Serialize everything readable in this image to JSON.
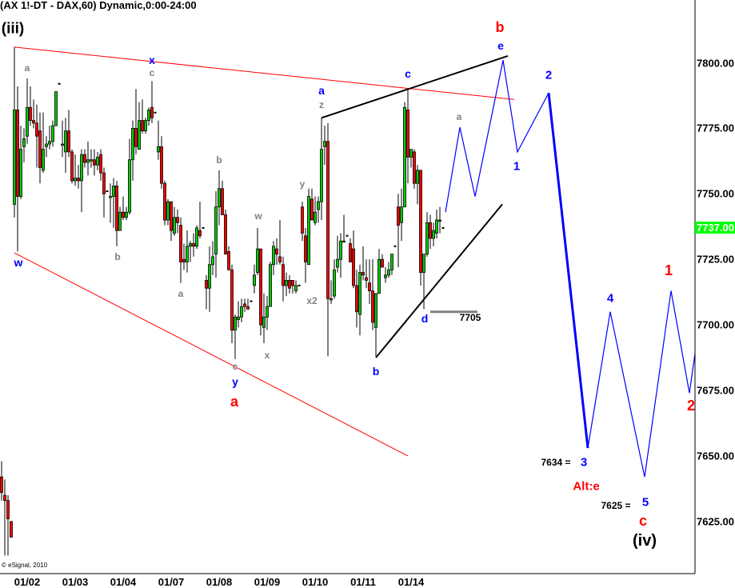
{
  "header": {
    "title": "(AX 1!-DT - DAX,60) Dynamic,0:00-24:00"
  },
  "footer": {
    "copyright": "© eSignal, 2010"
  },
  "colors": {
    "up": "#00cc00",
    "down": "#ff0000",
    "projection": "#0000ff",
    "channel_red": "#ff0000",
    "channel_black": "#000000",
    "last_price_bg": "#00ff00",
    "label_grey": "#808080",
    "label_blue": "#0000ff",
    "label_red": "#ff0000"
  },
  "chart_data": {
    "type": "candlestick",
    "ylim": [
      7612,
      7822
    ],
    "y_ticks": [
      "7800.00",
      "7775.00",
      "7750.00",
      "7725.00",
      "7700.00",
      "7675.00",
      "7650.00",
      "7625.00"
    ],
    "y_tick_values": [
      7800,
      7775,
      7750,
      7725,
      7700,
      7675,
      7650,
      7625
    ],
    "last_price": "7737.00",
    "x_ticks": [
      "01/02",
      "01/03",
      "01/04",
      "01/07",
      "01/08",
      "01/09",
      "01/10",
      "01/11",
      "01/14"
    ],
    "x_tick_bars": [
      4,
      19,
      34,
      49,
      64,
      79,
      94,
      109,
      124
    ],
    "ohlc_fields": [
      "open",
      "high",
      "low",
      "close"
    ],
    "candles": [
      [
        7746,
        7806,
        7741,
        7782
      ],
      [
        7782,
        7791,
        7728,
        7749
      ],
      [
        7749,
        7776,
        7748,
        7767
      ],
      [
        7768,
        7775,
        7762,
        7771
      ],
      [
        7772,
        7794,
        7769,
        7783
      ],
      [
        7783,
        7791,
        7776,
        7778
      ],
      [
        7778,
        7786,
        7775,
        7777
      ],
      [
        7777,
        7784,
        7760,
        7772
      ],
      [
        7774,
        7781,
        7754,
        7760
      ],
      [
        7759,
        7781,
        7758,
        7767
      ],
      [
        7768,
        7772,
        7764,
        7769
      ],
      [
        7769,
        7776,
        7767,
        7770
      ],
      [
        7770,
        7778,
        7768,
        7776
      ],
      [
        7776,
        7789,
        7776,
        7789
      ],
      [
        7792,
        7792,
        7792,
        7792
      ],
      [
        7769,
        7778,
        7764,
        7769
      ],
      [
        7766,
        7779,
        7758,
        7774
      ],
      [
        7774,
        7782,
        7764,
        7766
      ],
      [
        7766,
        7767,
        7754,
        7755
      ],
      [
        7755,
        7765,
        7753,
        7756
      ],
      [
        7756,
        7761,
        7752,
        7755
      ],
      [
        7755,
        7767,
        7743,
        7765
      ],
      [
        7765,
        7767,
        7760,
        7762
      ],
      [
        7762,
        7770,
        7757,
        7763
      ],
      [
        7763,
        7767,
        7760,
        7763
      ],
      [
        7763,
        7767,
        7757,
        7761
      ],
      [
        7761,
        7766,
        7759,
        7764
      ],
      [
        7765,
        7767,
        7755,
        7758
      ],
      [
        7758,
        7760,
        7741,
        7750
      ],
      [
        7751,
        7751,
        7751,
        7751
      ],
      [
        7749,
        7754,
        7739,
        7749
      ],
      [
        7749,
        7756,
        7737,
        7753
      ],
      [
        7753,
        7755,
        7730,
        7736
      ],
      [
        7736,
        7745,
        7736,
        7743
      ],
      [
        7743,
        7749,
        7740,
        7741
      ],
      [
        7741,
        7745,
        7740,
        7743
      ],
      [
        7743,
        7771,
        7742,
        7763
      ],
      [
        7763,
        7778,
        7755,
        7775
      ],
      [
        7775,
        7790,
        7765,
        7768
      ],
      [
        7767,
        7785,
        7767,
        7778
      ],
      [
        7778,
        7786,
        7773,
        7774
      ],
      [
        7774,
        7779,
        7773,
        7778
      ],
      [
        7778,
        7783,
        7776,
        7782
      ],
      [
        7783,
        7793,
        7777,
        7779
      ],
      [
        7781,
        7781,
        7781,
        7781
      ],
      [
        7766,
        7778,
        7763,
        7768
      ],
      [
        7768,
        7772,
        7752,
        7754
      ],
      [
        7754,
        7755,
        7738,
        7740
      ],
      [
        7740,
        7748,
        7738,
        7747
      ],
      [
        7747,
        7747,
        7732,
        7736
      ],
      [
        7735,
        7745,
        7734,
        7741
      ],
      [
        7741,
        7744,
        7735,
        7739
      ],
      [
        7738,
        7741,
        7716,
        7724
      ],
      [
        7725,
        7731,
        7721,
        7724
      ],
      [
        7724,
        7736,
        7720,
        7730
      ],
      [
        7730,
        7732,
        7724,
        7731
      ],
      [
        7731,
        7735,
        7726,
        7730
      ],
      [
        7730,
        7738,
        7729,
        7737
      ],
      [
        7736,
        7747,
        7733,
        7734
      ],
      [
        7737,
        7737,
        7737,
        7737
      ],
      [
        7717,
        7719,
        7706,
        7714
      ],
      [
        7714,
        7730,
        7705,
        7723
      ],
      [
        7723,
        7732,
        7719,
        7726
      ],
      [
        7727,
        7751,
        7718,
        7745
      ],
      [
        7745,
        7759,
        7738,
        7752
      ],
      [
        7752,
        7755,
        7742,
        7742
      ],
      [
        7742,
        7744,
        7727,
        7727
      ],
      [
        7728,
        7730,
        7721,
        7721
      ],
      [
        7721,
        7723,
        7693,
        7698
      ],
      [
        7698,
        7704,
        7687,
        7703
      ],
      [
        7702,
        7709,
        7699,
        7703
      ],
      [
        7703,
        7710,
        7701,
        7707
      ],
      [
        7708,
        7710,
        7705,
        7707
      ],
      [
        7707,
        7710,
        7706,
        7706
      ],
      [
        7709,
        7709,
        7709,
        7709
      ],
      [
        7715,
        7723,
        7712,
        7719
      ],
      [
        7720,
        7737,
        7719,
        7729
      ],
      [
        7729,
        7729,
        7696,
        7700
      ],
      [
        7699,
        7712,
        7693,
        7703
      ],
      [
        7703,
        7711,
        7698,
        7707
      ],
      [
        7707,
        7724,
        7707,
        7723
      ],
      [
        7723,
        7732,
        7719,
        7730
      ],
      [
        7729,
        7733,
        7723,
        7727
      ],
      [
        7726,
        7740,
        7723,
        7724
      ],
      [
        7723,
        7726,
        7709,
        7715
      ],
      [
        7715,
        7720,
        7711,
        7717
      ],
      [
        7717,
        7719,
        7712,
        7714
      ],
      [
        7717,
        7717,
        7712,
        7715
      ],
      [
        7713,
        7717,
        7712,
        7715
      ],
      [
        7715,
        7715,
        7715,
        7715
      ],
      [
        7745,
        7747,
        7732,
        7735
      ],
      [
        7734,
        7737,
        7716,
        7724
      ],
      [
        7723,
        7752,
        7723,
        7749
      ],
      [
        7748,
        7752,
        7740,
        7740
      ],
      [
        7739,
        7749,
        7738,
        7743
      ],
      [
        7744,
        7749,
        7739,
        7747
      ],
      [
        7747,
        7779,
        7740,
        7767
      ],
      [
        7768,
        7776,
        7761,
        7770
      ],
      [
        7770,
        7777,
        7688,
        7710
      ],
      [
        7710,
        7717,
        7708,
        7710
      ],
      [
        7711,
        7725,
        7710,
        7721
      ],
      [
        7722,
        7734,
        7720,
        7725
      ],
      [
        7725,
        7735,
        7718,
        7732
      ],
      [
        7732,
        7742,
        7732,
        7732
      ],
      [
        7734,
        7734,
        7734,
        7734
      ],
      [
        7731,
        7733,
        7724,
        7724
      ],
      [
        7729,
        7736,
        7714,
        7715
      ],
      [
        7715,
        7721,
        7699,
        7705
      ],
      [
        7704,
        7723,
        7696,
        7720
      ],
      [
        7720,
        7730,
        7717,
        7719
      ],
      [
        7718,
        7725,
        7714,
        7717
      ],
      [
        7716,
        7725,
        7708,
        7713
      ],
      [
        7713,
        7725,
        7698,
        7701
      ],
      [
        7699,
        7712,
        7688,
        7712
      ],
      [
        7712,
        7729,
        7712,
        7725
      ],
      [
        7725,
        7727,
        7722,
        7722
      ],
      [
        7718,
        7722,
        7716,
        7719
      ],
      [
        7719,
        7724,
        7718,
        7721
      ],
      [
        7721,
        7727,
        7719,
        7727
      ],
      [
        7730,
        7730,
        7730,
        7730
      ],
      [
        7745,
        7750,
        7722,
        7738
      ],
      [
        7739,
        7752,
        7732,
        7745
      ],
      [
        7745,
        7785,
        7745,
        7783
      ],
      [
        7782,
        7790,
        7754,
        7764
      ],
      [
        7764,
        7767,
        7760,
        7767
      ],
      [
        7766,
        7767,
        7752,
        7754
      ],
      [
        7754,
        7761,
        7746,
        7759
      ],
      [
        7759,
        7759,
        7715,
        7720
      ],
      [
        7720,
        7727,
        7706,
        7727
      ],
      [
        7727,
        7743,
        7726,
        7739
      ],
      [
        7739,
        7742,
        7729,
        7733
      ],
      [
        7733,
        7739,
        7730,
        7736
      ],
      [
        7735,
        7744,
        7733,
        7740
      ],
      [
        7740,
        7745,
        7735,
        7740
      ],
      [
        7737,
        7737,
        7737,
        7737
      ]
    ],
    "left_fragment_candles": [
      [
        7642,
        7648,
        7633,
        7636
      ],
      [
        7635,
        7641,
        7612,
        7633
      ],
      [
        7633,
        7635,
        7612,
        7626
      ],
      [
        7625,
        7625,
        7619,
        7619
      ]
    ],
    "trendlines": [
      {
        "color": "#ff0000",
        "from": [
          0,
          7806
        ],
        "to": [
          156.25,
          7786
        ]
      },
      {
        "color": "#ff0000",
        "from": [
          0,
          7727.5
        ],
        "to": [
          123,
          7650
        ]
      },
      {
        "color": "#000000",
        "from": [
          96,
          7779
        ],
        "to": [
          154.25,
          7802.6
        ]
      },
      {
        "color": "#000000",
        "from": [
          113,
          7687.5
        ],
        "to": [
          152.5,
          7746
        ]
      }
    ],
    "support_level": {
      "price": 7705,
      "label": "7705",
      "from_bar": 130,
      "to_bar": 144.75
    },
    "projection_thin": [
      [
        134.75,
        7743
      ],
      [
        139.25,
        7775.4
      ],
      [
        144,
        7749
      ],
      [
        152.75,
        7801
      ],
      [
        157.25,
        7766
      ],
      [
        167,
        7788.5
      ]
    ],
    "projection_thick": [
      [
        167,
        7788.5
      ],
      [
        179.25,
        7653
      ]
    ],
    "projection_thin2": [
      [
        179.25,
        7653
      ],
      [
        186.25,
        7705
      ],
      [
        197,
        7642
      ],
      [
        205.25,
        7713
      ],
      [
        211,
        7674
      ],
      [
        212.75,
        7689
      ]
    ],
    "annotations": [
      {
        "text": "(iii)",
        "color": "black"
      },
      {
        "text": "a",
        "color": "grey"
      },
      {
        "text": "x",
        "color": "blue"
      },
      {
        "text": "c",
        "color": "grey"
      },
      {
        "text": "w",
        "color": "blue"
      },
      {
        "text": "b",
        "color": "grey"
      },
      {
        "text": "b",
        "color": "grey"
      },
      {
        "text": "a",
        "color": "grey"
      },
      {
        "text": "w",
        "color": "grey"
      },
      {
        "text": "x",
        "color": "grey"
      },
      {
        "text": "c",
        "color": "grey"
      },
      {
        "text": "y",
        "color": "blue"
      },
      {
        "text": "a",
        "color": "red"
      },
      {
        "text": "y",
        "color": "grey"
      },
      {
        "text": "x2",
        "color": "grey"
      },
      {
        "text": "a",
        "color": "blue"
      },
      {
        "text": "z",
        "color": "grey"
      },
      {
        "text": "c",
        "color": "blue"
      },
      {
        "text": "b",
        "color": "blue"
      },
      {
        "text": "d",
        "color": "blue"
      },
      {
        "text": "7705",
        "color": "black"
      },
      {
        "text": "a",
        "color": "grey"
      },
      {
        "text": "b",
        "color": "red"
      },
      {
        "text": "e",
        "color": "blue"
      },
      {
        "text": "2",
        "color": "blue"
      },
      {
        "text": "1",
        "color": "blue"
      },
      {
        "text": "4",
        "color": "blue"
      },
      {
        "text": "1",
        "color": "red"
      },
      {
        "text": "2",
        "color": "red"
      },
      {
        "text": "7634 =",
        "color": "black"
      },
      {
        "text": "3",
        "color": "blue"
      },
      {
        "text": "Alt:e",
        "color": "red"
      },
      {
        "text": "7625 =",
        "color": "black"
      },
      {
        "text": "5",
        "color": "blue"
      },
      {
        "text": "c",
        "color": "red"
      },
      {
        "text": "(iv)",
        "color": "black"
      }
    ]
  }
}
